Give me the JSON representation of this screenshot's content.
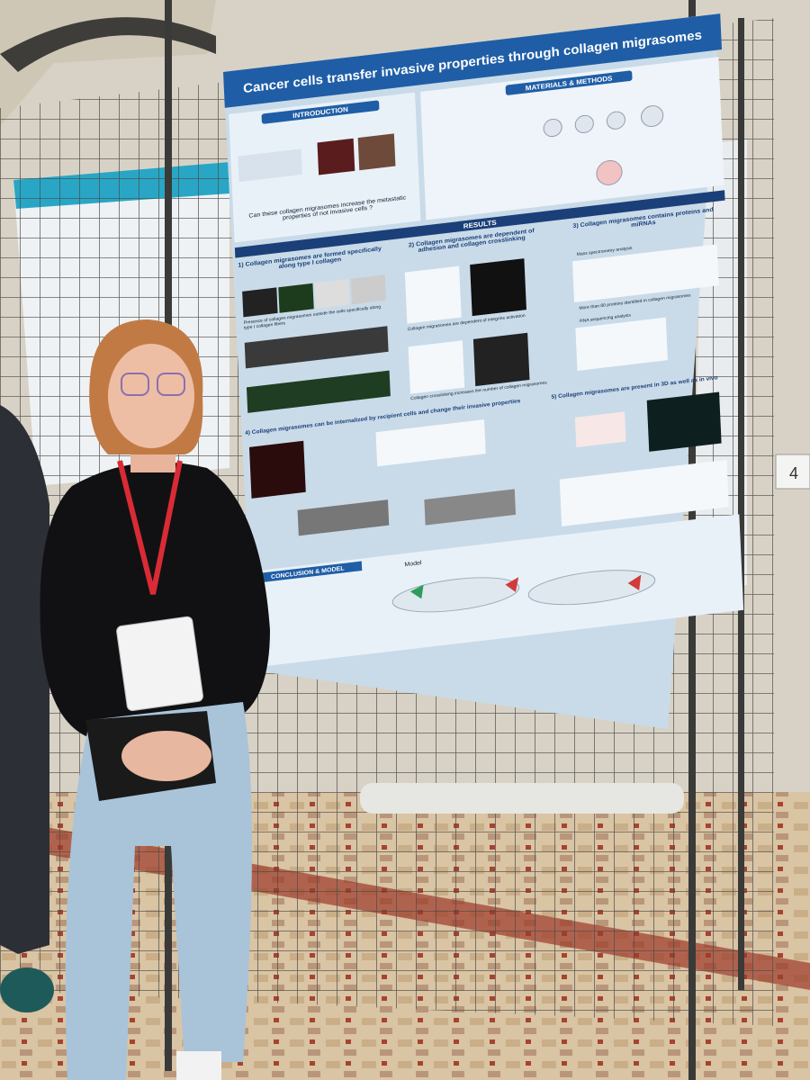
{
  "poster": {
    "title": "Cancer cells transfer invasive properties through collagen migrasomes",
    "introduction": "INTRODUCTION",
    "methods": "MATERIALS & METHODS",
    "question": "Can these collagen migrasomes increase the metastatic properties of not invasive cells ?",
    "results_header": "RESULTS",
    "results": [
      "1) Collagen migrasomes are formed specifically along type I collagen",
      "2) Collagen migrasomes are dependent of adhesion and collagen crosslinking",
      "3) Collagen migrasomes contains proteins and miRNAs",
      "4) Collagen migrasomes can be internalized by recipient cells and change their invasive properties",
      "5) Collagen migrasomes are present in 3D as well as in vivo"
    ],
    "captions": [
      "Presence of collagen migrasomes outside the cells specifically along type I collagen fibers",
      "Collagen migrasomes are dependent of integrins activation",
      "Collagen crosslinking increases the number of collagen migrasomes",
      "Mass spectrometry analysis",
      "More than 80 proteins identified in collagen migrasomes",
      "RNA sequencing analysis"
    ],
    "conclusion": "CONCLUSION & MODEL",
    "model": "Model"
  },
  "board_number": "4"
}
